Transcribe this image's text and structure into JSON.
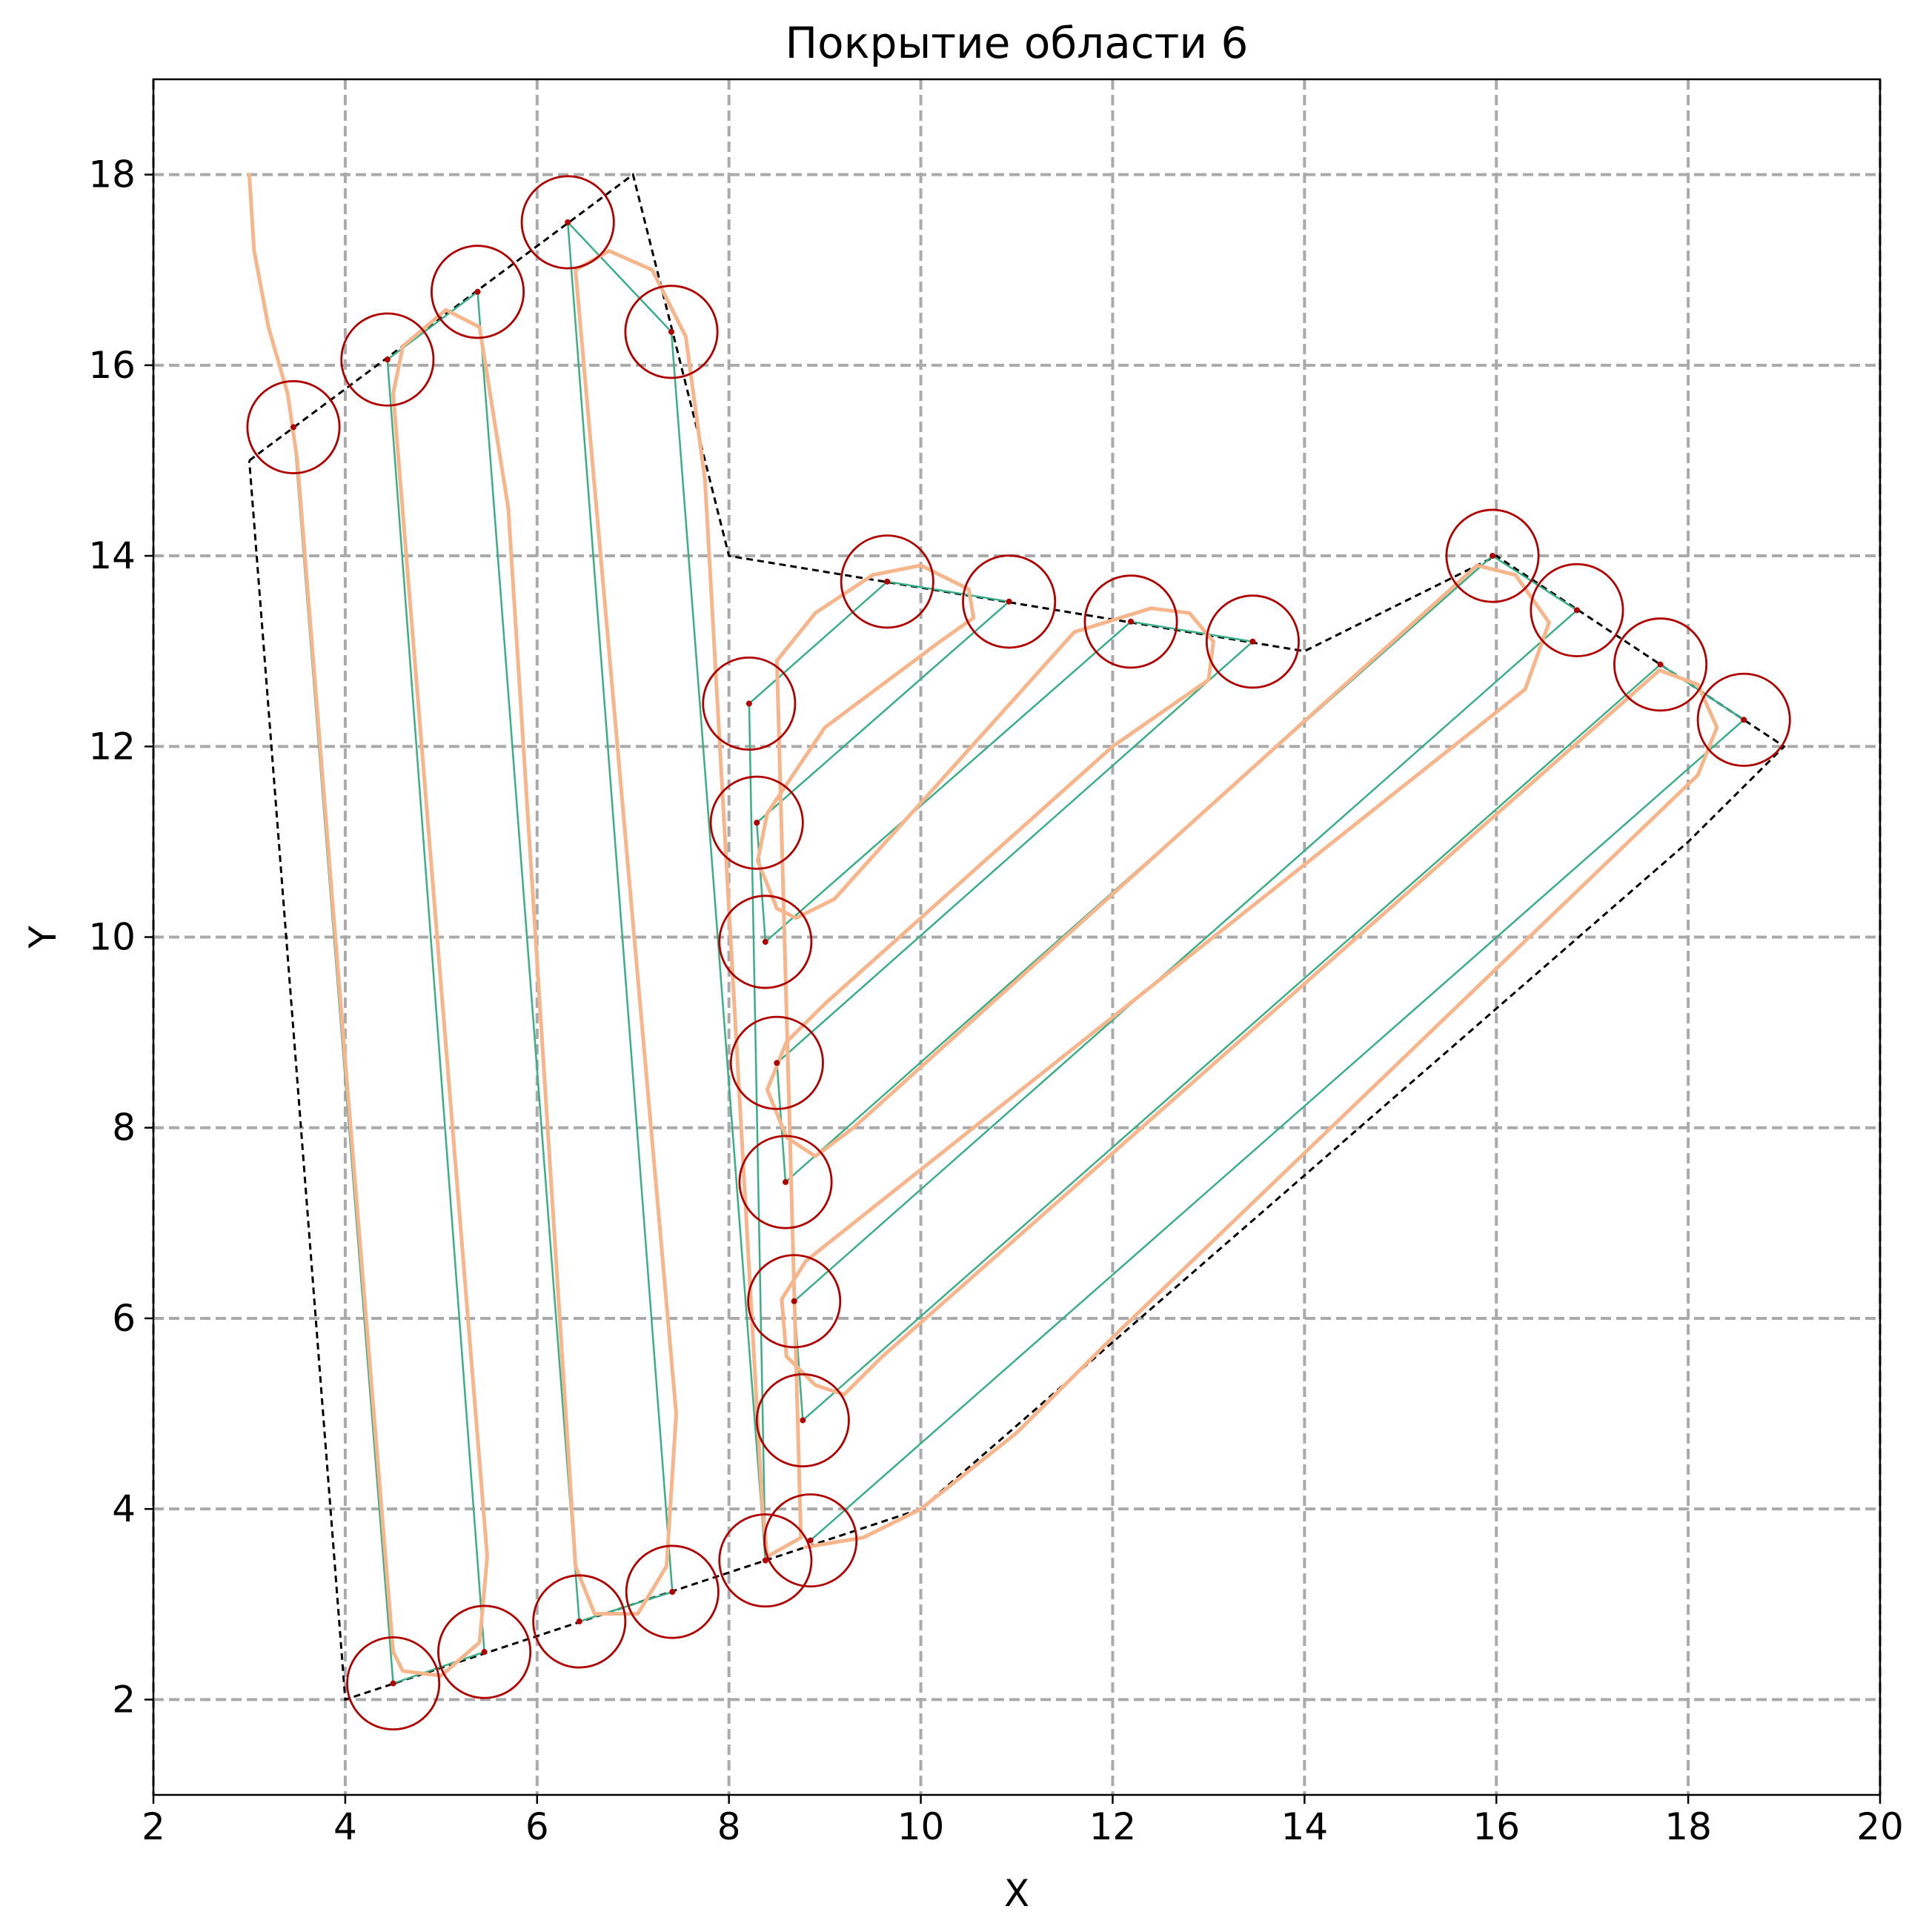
{
  "chart_data": {
    "type": "line",
    "title": "Покрытие области 6",
    "xlabel": "X",
    "ylabel": "Y",
    "xlim": [
      2,
      20
    ],
    "ylim": [
      1,
      19
    ],
    "x_ticks": [
      "2",
      "4",
      "6",
      "8",
      "10",
      "12",
      "14",
      "16",
      "18",
      "20"
    ],
    "y_ticks": [
      "2",
      "4",
      "6",
      "8",
      "10",
      "12",
      "14",
      "16",
      "18"
    ],
    "grid": true,
    "colors": {
      "boundary": "#000000",
      "zigzag": "#3aae85",
      "trajectory": "#f7b58c",
      "circle": "#b00000",
      "grid": "#aaaaaa"
    },
    "boundary": [
      [
        3,
        15
      ],
      [
        7,
        18
      ],
      [
        8,
        14
      ],
      [
        14,
        13
      ],
      [
        16,
        14
      ],
      [
        19,
        12
      ],
      [
        18,
        11
      ],
      [
        10,
        4
      ],
      [
        4,
        2
      ],
      [
        3,
        15
      ]
    ],
    "waypoints": [
      [
        3.46,
        15.35
      ],
      [
        4.44,
        16.06
      ],
      [
        5.38,
        16.77
      ],
      [
        6.32,
        17.5
      ],
      [
        7.4,
        16.35
      ],
      [
        4.5,
        2.17
      ],
      [
        5.45,
        2.5
      ],
      [
        6.44,
        2.82
      ],
      [
        7.41,
        3.13
      ],
      [
        8.38,
        3.46
      ],
      [
        8.85,
        3.67
      ],
      [
        8.21,
        12.45
      ],
      [
        8.29,
        11.2
      ],
      [
        8.38,
        9.95
      ],
      [
        8.5,
        8.68
      ],
      [
        8.59,
        7.43
      ],
      [
        8.68,
        6.18
      ],
      [
        8.77,
        4.93
      ],
      [
        9.65,
        13.73
      ],
      [
        10.92,
        13.52
      ],
      [
        12.19,
        13.31
      ],
      [
        13.46,
        13.1
      ],
      [
        15.96,
        14.0
      ],
      [
        16.84,
        13.43
      ],
      [
        17.71,
        12.86
      ],
      [
        18.58,
        12.28
      ]
    ],
    "zigzag_path": [
      [
        3.46,
        15.35
      ],
      [
        4.5,
        2.17
      ],
      [
        5.45,
        2.5
      ],
      [
        4.44,
        16.06
      ],
      [
        5.38,
        16.77
      ],
      [
        6.44,
        2.82
      ],
      [
        7.41,
        3.13
      ],
      [
        6.32,
        17.5
      ],
      [
        7.4,
        16.35
      ],
      [
        8.38,
        3.46
      ],
      [
        8.21,
        12.45
      ],
      [
        9.65,
        13.73
      ],
      [
        10.92,
        13.52
      ],
      [
        8.29,
        11.2
      ],
      [
        8.38,
        9.95
      ],
      [
        12.19,
        13.31
      ],
      [
        13.46,
        13.1
      ],
      [
        8.5,
        8.68
      ],
      [
        8.59,
        7.43
      ],
      [
        15.96,
        14.0
      ],
      [
        16.84,
        13.43
      ],
      [
        8.68,
        6.18
      ],
      [
        8.77,
        4.93
      ],
      [
        17.71,
        12.86
      ],
      [
        18.58,
        12.28
      ],
      [
        8.85,
        3.67
      ]
    ],
    "trajectory": [
      [
        3.0,
        18.0
      ],
      [
        3.05,
        17.2
      ],
      [
        3.2,
        16.4
      ],
      [
        3.4,
        15.7
      ],
      [
        3.5,
        15.0
      ],
      [
        4.0,
        8.7
      ],
      [
        4.5,
        2.5
      ],
      [
        4.6,
        2.3
      ],
      [
        5.0,
        2.25
      ],
      [
        5.4,
        2.6
      ],
      [
        5.48,
        3.5
      ],
      [
        4.5,
        15.7
      ],
      [
        4.6,
        16.2
      ],
      [
        5.05,
        16.58
      ],
      [
        5.4,
        16.4
      ],
      [
        5.7,
        14.5
      ],
      [
        6.4,
        3.4
      ],
      [
        6.6,
        2.9
      ],
      [
        7.05,
        2.9
      ],
      [
        7.35,
        3.4
      ],
      [
        7.45,
        5.0
      ],
      [
        6.4,
        17.0
      ],
      [
        6.75,
        17.2
      ],
      [
        7.2,
        17.0
      ],
      [
        7.55,
        16.3
      ],
      [
        7.75,
        14.8
      ],
      [
        8.35,
        4.0
      ],
      [
        8.4,
        3.5
      ],
      [
        8.75,
        3.7
      ],
      [
        8.5,
        12.9
      ],
      [
        8.9,
        13.4
      ],
      [
        9.5,
        13.8
      ],
      [
        10.0,
        13.9
      ],
      [
        10.5,
        13.65
      ],
      [
        10.55,
        13.35
      ],
      [
        10.2,
        13.1
      ],
      [
        9.0,
        12.2
      ],
      [
        8.4,
        11.3
      ],
      [
        8.3,
        10.8
      ],
      [
        8.5,
        10.3
      ],
      [
        8.7,
        10.2
      ],
      [
        9.1,
        10.4
      ],
      [
        11.6,
        13.2
      ],
      [
        12.4,
        13.45
      ],
      [
        12.8,
        13.4
      ],
      [
        13.05,
        13.1
      ],
      [
        13.0,
        12.7
      ],
      [
        12.0,
        12.0
      ],
      [
        9.0,
        9.3
      ],
      [
        8.6,
        8.9
      ],
      [
        8.4,
        8.4
      ],
      [
        8.6,
        7.9
      ],
      [
        8.9,
        7.7
      ],
      [
        9.3,
        8.0
      ],
      [
        15.8,
        13.9
      ],
      [
        16.2,
        13.8
      ],
      [
        16.55,
        13.3
      ],
      [
        16.3,
        12.6
      ],
      [
        15.8,
        12.2
      ],
      [
        9.3,
        7.0
      ],
      [
        8.8,
        6.6
      ],
      [
        8.55,
        6.2
      ],
      [
        8.6,
        5.6
      ],
      [
        8.9,
        5.3
      ],
      [
        9.2,
        5.2
      ],
      [
        9.6,
        5.6
      ],
      [
        17.7,
        12.8
      ],
      [
        18.1,
        12.65
      ],
      [
        18.3,
        12.2
      ],
      [
        18.1,
        11.7
      ],
      [
        12.0,
        5.8
      ],
      [
        11.0,
        4.8
      ],
      [
        10.0,
        4.0
      ],
      [
        9.4,
        3.7
      ],
      [
        8.8,
        3.6
      ]
    ],
    "circle_radius": 0.48
  }
}
